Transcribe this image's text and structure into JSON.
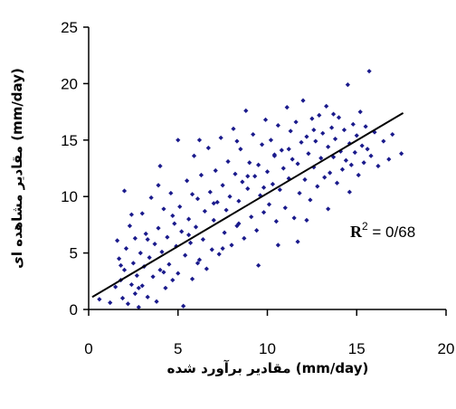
{
  "chart_data": {
    "type": "scatter",
    "title": "",
    "xlabel": "مقادیر برآورد شده (mm/day)",
    "ylabel": "مقادیر مشاهده ای (mm/day)",
    "xlim": [
      0,
      20
    ],
    "ylim": [
      0,
      25
    ],
    "x_ticks": [
      "0",
      "5",
      "10",
      "15",
      "20"
    ],
    "y_ticks": [
      "0",
      "5",
      "10",
      "15",
      "20",
      "25"
    ],
    "grid": false,
    "legend": "none",
    "colors": {
      "points": "#1a1a8c",
      "trendline": "#000000"
    },
    "series": [
      {
        "points": [
          [
            0.6,
            0.9
          ],
          [
            1.2,
            0.6
          ],
          [
            1.5,
            2.0
          ],
          [
            1.6,
            6.1
          ],
          [
            1.7,
            4.5
          ],
          [
            1.8,
            2.6
          ],
          [
            1.9,
            1.0
          ],
          [
            2.0,
            10.5
          ],
          [
            2.0,
            3.5
          ],
          [
            2.1,
            5.4
          ],
          [
            2.2,
            0.5
          ],
          [
            2.3,
            7.4
          ],
          [
            2.4,
            2.2
          ],
          [
            2.5,
            4.1
          ],
          [
            2.6,
            1.4
          ],
          [
            2.6,
            6.3
          ],
          [
            2.7,
            3.0
          ],
          [
            2.8,
            0.2
          ],
          [
            2.9,
            5.0
          ],
          [
            3.0,
            8.5
          ],
          [
            3.0,
            2.1
          ],
          [
            3.1,
            3.8
          ],
          [
            3.2,
            6.7
          ],
          [
            3.3,
            1.1
          ],
          [
            3.4,
            4.6
          ],
          [
            3.5,
            9.9
          ],
          [
            3.6,
            2.9
          ],
          [
            3.7,
            5.8
          ],
          [
            3.8,
            0.7
          ],
          [
            3.9,
            7.2
          ],
          [
            4.0,
            3.5
          ],
          [
            4.0,
            12.7
          ],
          [
            4.1,
            5.1
          ],
          [
            4.2,
            8.9
          ],
          [
            4.3,
            1.9
          ],
          [
            4.4,
            6.4
          ],
          [
            4.5,
            4.0
          ],
          [
            4.6,
            10.3
          ],
          [
            4.7,
            2.6
          ],
          [
            4.8,
            7.6
          ],
          [
            4.9,
            5.6
          ],
          [
            5.0,
            15.0
          ],
          [
            5.0,
            3.2
          ],
          [
            5.1,
            9.1
          ],
          [
            5.2,
            6.9
          ],
          [
            5.3,
            0.3
          ],
          [
            5.4,
            4.8
          ],
          [
            5.5,
            11.4
          ],
          [
            5.6,
            8.0
          ],
          [
            5.7,
            5.9
          ],
          [
            5.8,
            2.7
          ],
          [
            5.9,
            13.6
          ],
          [
            6.0,
            7.3
          ],
          [
            6.1,
            9.8
          ],
          [
            6.2,
            4.4
          ],
          [
            6.3,
            11.9
          ],
          [
            6.4,
            6.2
          ],
          [
            6.5,
            8.7
          ],
          [
            6.6,
            3.6
          ],
          [
            6.7,
            14.3
          ],
          [
            6.8,
            10.4
          ],
          [
            6.9,
            5.3
          ],
          [
            7.0,
            7.9
          ],
          [
            7.1,
            12.3
          ],
          [
            7.2,
            9.5
          ],
          [
            7.3,
            4.9
          ],
          [
            7.4,
            15.2
          ],
          [
            7.5,
            11.0
          ],
          [
            7.6,
            6.8
          ],
          [
            7.7,
            8.8
          ],
          [
            7.8,
            13.1
          ],
          [
            7.9,
            10.0
          ],
          [
            8.0,
            5.7
          ],
          [
            8.1,
            16.0
          ],
          [
            8.2,
            12.0
          ],
          [
            8.3,
            7.4
          ],
          [
            8.4,
            9.6
          ],
          [
            8.5,
            14.2
          ],
          [
            8.6,
            11.3
          ],
          [
            8.7,
            6.3
          ],
          [
            8.8,
            17.6
          ],
          [
            8.9,
            10.7
          ],
          [
            9.0,
            13.0
          ],
          [
            9.1,
            8.2
          ],
          [
            9.2,
            15.5
          ],
          [
            9.3,
            11.8
          ],
          [
            9.4,
            7.0
          ],
          [
            9.5,
            12.8
          ],
          [
            9.6,
            10.1
          ],
          [
            9.7,
            14.6
          ],
          [
            9.8,
            8.6
          ],
          [
            9.9,
            16.8
          ],
          [
            10.0,
            12.2
          ],
          [
            10.1,
            9.3
          ],
          [
            10.2,
            15.0
          ],
          [
            10.3,
            11.1
          ],
          [
            10.4,
            13.7
          ],
          [
            10.5,
            7.8
          ],
          [
            10.6,
            16.3
          ],
          [
            10.7,
            10.6
          ],
          [
            10.8,
            14.1
          ],
          [
            10.9,
            12.5
          ],
          [
            11.0,
            9.0
          ],
          [
            11.1,
            17.9
          ],
          [
            11.2,
            11.6
          ],
          [
            11.3,
            15.8
          ],
          [
            11.4,
            13.3
          ],
          [
            11.5,
            8.1
          ],
          [
            11.6,
            16.6
          ],
          [
            11.7,
            12.9
          ],
          [
            11.8,
            10.3
          ],
          [
            11.9,
            14.8
          ],
          [
            12.0,
            18.5
          ],
          [
            12.1,
            11.5
          ],
          [
            12.2,
            15.3
          ],
          [
            12.3,
            13.8
          ],
          [
            12.4,
            9.7
          ],
          [
            12.5,
            16.9
          ],
          [
            12.6,
            12.6
          ],
          [
            12.7,
            14.9
          ],
          [
            12.8,
            10.9
          ],
          [
            12.9,
            17.2
          ],
          [
            13.0,
            13.4
          ],
          [
            13.1,
            15.6
          ],
          [
            13.2,
            11.7
          ],
          [
            13.3,
            18.0
          ],
          [
            13.4,
            14.4
          ],
          [
            13.5,
            12.1
          ],
          [
            13.6,
            16.1
          ],
          [
            13.7,
            13.5
          ],
          [
            13.8,
            15.1
          ],
          [
            13.9,
            11.2
          ],
          [
            14.0,
            17.0
          ],
          [
            14.1,
            14.0
          ],
          [
            14.2,
            12.4
          ],
          [
            14.3,
            15.9
          ],
          [
            14.4,
            13.2
          ],
          [
            14.5,
            19.9
          ],
          [
            14.6,
            14.7
          ],
          [
            14.7,
            12.8
          ],
          [
            14.8,
            16.4
          ],
          [
            14.9,
            13.9
          ],
          [
            15.0,
            15.4
          ],
          [
            15.1,
            11.9
          ],
          [
            15.2,
            17.5
          ],
          [
            15.3,
            14.5
          ],
          [
            15.4,
            13.0
          ],
          [
            15.5,
            16.2
          ],
          [
            15.6,
            14.2
          ],
          [
            15.8,
            13.6
          ],
          [
            16.0,
            15.7
          ],
          [
            16.2,
            12.7
          ],
          [
            16.5,
            14.9
          ],
          [
            16.8,
            13.3
          ],
          [
            17.0,
            15.5
          ],
          [
            15.7,
            21.1
          ],
          [
            17.5,
            13.8
          ],
          [
            3.9,
            11.0
          ],
          [
            6.2,
            15.0
          ],
          [
            9.5,
            3.9
          ],
          [
            11.7,
            6.0
          ],
          [
            13.4,
            8.9
          ],
          [
            2.4,
            8.4
          ],
          [
            5.8,
            10.2
          ],
          [
            8.3,
            14.9
          ],
          [
            10.6,
            5.7
          ],
          [
            12.2,
            7.9
          ],
          [
            14.6,
            10.4
          ],
          [
            1.8,
            3.9
          ],
          [
            3.3,
            6.2
          ],
          [
            4.7,
            8.3
          ],
          [
            6.1,
            4.1
          ],
          [
            7.5,
            5.4
          ],
          [
            8.9,
            11.8
          ],
          [
            10.4,
            13.6
          ],
          [
            12.6,
            15.9
          ],
          [
            2.8,
            1.9
          ],
          [
            4.2,
            3.3
          ],
          [
            5.6,
            6.6
          ],
          [
            7.0,
            9.4
          ],
          [
            8.4,
            7.6
          ],
          [
            9.8,
            10.8
          ],
          [
            11.2,
            14.2
          ],
          [
            13.7,
            17.3
          ]
        ]
      }
    ],
    "trendline": {
      "type": "linear",
      "x_range": [
        0.2,
        17.6
      ],
      "y_start": 1.1,
      "y_end": 17.4
    },
    "annotation": {
      "base": "R",
      "sup": "2",
      "rest": " = 0/68"
    }
  }
}
